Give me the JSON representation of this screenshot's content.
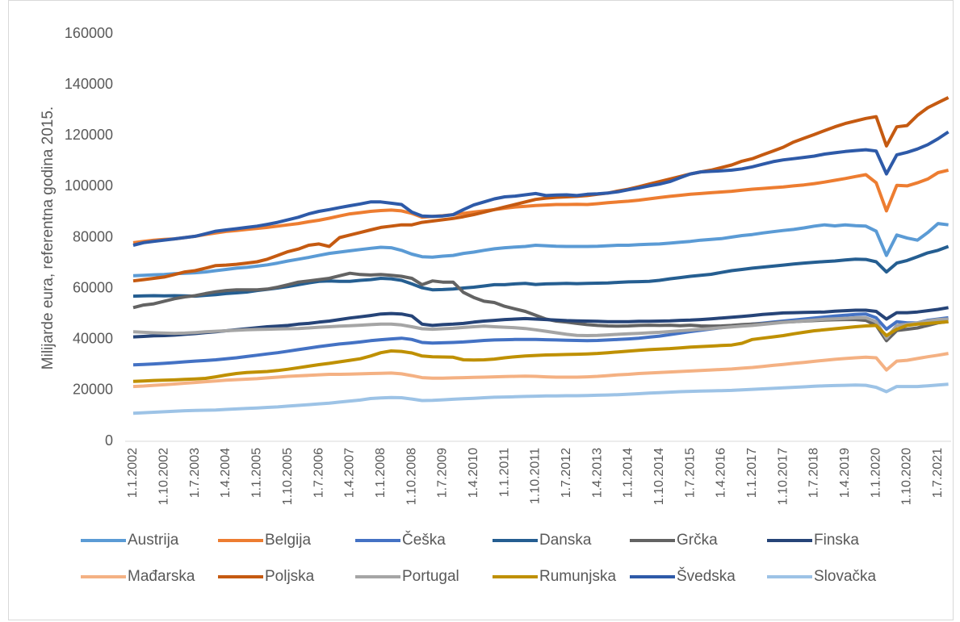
{
  "chart_data": {
    "type": "line",
    "y_label": "Milijarde eura, referentna godina 2015.",
    "ylim": [
      0,
      160000
    ],
    "yticks": [
      0,
      20000,
      40000,
      60000,
      80000,
      100000,
      120000,
      140000,
      160000
    ],
    "grid": false,
    "legend": "bottom",
    "categories": [
      "1.1.2002",
      null,
      null,
      "1.10.2002",
      null,
      null,
      "1.7.2003",
      null,
      null,
      "1.4.2004",
      null,
      null,
      "1.1.2005",
      null,
      null,
      "1.10.2005",
      null,
      null,
      "1.7.2006",
      null,
      null,
      "1.4.2007",
      null,
      null,
      "1.1.2008",
      null,
      null,
      "1.10.2008",
      null,
      null,
      "1.7.2009",
      null,
      null,
      "1.4.2010",
      null,
      null,
      "1.1.2011",
      null,
      null,
      "1.10.2011",
      null,
      null,
      "1.7.2012",
      null,
      null,
      "1.4.2013",
      null,
      null,
      "1.1.2014",
      null,
      null,
      "1.10.2014",
      null,
      null,
      "1.7.2015",
      null,
      null,
      "1.4.2016",
      null,
      null,
      "1.1.2017",
      null,
      null,
      "1.10.2017",
      null,
      null,
      "1.7.2018",
      null,
      null,
      "1.4.2019",
      null,
      null,
      "1.1.2020",
      null,
      null,
      "1.10.2020",
      null,
      null,
      "1.7.2021",
      null
    ],
    "series": [
      {
        "name": "Austrija",
        "color": "#5b9bd5",
        "values": [
          65000,
          65200,
          65400,
          65500,
          65800,
          66000,
          66200,
          66500,
          67000,
          67500,
          68000,
          68300,
          68800,
          69300,
          70000,
          70800,
          71500,
          72200,
          73000,
          73800,
          74300,
          74800,
          75300,
          75800,
          76200,
          76000,
          75000,
          73500,
          72500,
          72300,
          72700,
          73000,
          73800,
          74300,
          75000,
          75600,
          76000,
          76300,
          76500,
          77000,
          76800,
          76600,
          76500,
          76500,
          76500,
          76600,
          76800,
          77000,
          77000,
          77200,
          77400,
          77500,
          77800,
          78200,
          78500,
          79000,
          79300,
          79600,
          80200,
          80800,
          81200,
          81800,
          82300,
          82800,
          83200,
          83800,
          84500,
          85000,
          84600,
          85000,
          84700,
          84500,
          82500,
          73000,
          81000,
          79800,
          79000,
          82000,
          85500,
          85000
        ]
      },
      {
        "name": "Belgija",
        "color": "#ed7d31",
        "values": [
          78000,
          78500,
          79000,
          79300,
          79500,
          80000,
          80500,
          81200,
          81800,
          82400,
          82800,
          83200,
          83600,
          84000,
          84500,
          85000,
          85500,
          86200,
          86800,
          87600,
          88500,
          89300,
          89800,
          90300,
          90600,
          90800,
          90500,
          89500,
          88000,
          88300,
          88600,
          89000,
          89500,
          90000,
          90500,
          91000,
          91500,
          92000,
          92300,
          92600,
          92800,
          93000,
          93000,
          93100,
          93000,
          93300,
          93700,
          94000,
          94300,
          94700,
          95200,
          95700,
          96200,
          96600,
          97000,
          97300,
          97600,
          97900,
          98200,
          98600,
          99000,
          99300,
          99600,
          99900,
          100300,
          100700,
          101200,
          101800,
          102500,
          103200,
          104000,
          104700,
          101500,
          90500,
          100500,
          100300,
          101500,
          103000,
          105500,
          106500
        ]
      },
      {
        "name": "Češka",
        "color": "#4472c4",
        "values": [
          30000,
          30200,
          30400,
          30600,
          30900,
          31200,
          31500,
          31700,
          32000,
          32400,
          32800,
          33300,
          33800,
          34300,
          34800,
          35400,
          36000,
          36600,
          37200,
          37700,
          38200,
          38600,
          39000,
          39500,
          39900,
          40200,
          40500,
          40000,
          38800,
          38600,
          38700,
          38800,
          39000,
          39300,
          39600,
          39800,
          39900,
          40000,
          40000,
          40000,
          39900,
          39800,
          39700,
          39600,
          39500,
          39600,
          39800,
          40000,
          40200,
          40500,
          40900,
          41300,
          41900,
          42500,
          43100,
          43600,
          44100,
          44600,
          45100,
          45600,
          46000,
          46400,
          46800,
          47200,
          47600,
          48000,
          48400,
          48800,
          49200,
          49500,
          49800,
          50000,
          48500,
          44000,
          47000,
          46500,
          46500,
          47500,
          48000,
          48500
        ]
      },
      {
        "name": "Danska",
        "color": "#255e91",
        "values": [
          57000,
          57100,
          57200,
          57100,
          57200,
          57100,
          57000,
          57300,
          57600,
          58000,
          58300,
          58600,
          59200,
          59700,
          60200,
          60800,
          61500,
          62200,
          62800,
          63000,
          62800,
          62800,
          63200,
          63500,
          64000,
          63800,
          63200,
          61800,
          60300,
          59500,
          59600,
          59800,
          60200,
          60500,
          61000,
          61500,
          61500,
          61800,
          62000,
          61600,
          61800,
          61900,
          62000,
          61900,
          62000,
          62100,
          62200,
          62400,
          62600,
          62700,
          62800,
          63200,
          63800,
          64300,
          64800,
          65200,
          65600,
          66300,
          67000,
          67500,
          68000,
          68400,
          68800,
          69200,
          69600,
          70000,
          70300,
          70600,
          70800,
          71200,
          71500,
          71400,
          70500,
          66500,
          70000,
          71000,
          72500,
          74000,
          75000,
          76500
        ]
      },
      {
        "name": "Grčka",
        "color": "#636363",
        "values": [
          52500,
          53500,
          54000,
          55000,
          56000,
          56700,
          57200,
          58000,
          58700,
          59200,
          59500,
          59500,
          59500,
          59800,
          60500,
          61500,
          62500,
          63000,
          63500,
          64000,
          65000,
          66000,
          65500,
          65300,
          65500,
          65200,
          64800,
          64000,
          61500,
          63000,
          62500,
          62500,
          58500,
          56500,
          55000,
          54500,
          53000,
          52000,
          51000,
          49500,
          48000,
          47200,
          46800,
          46300,
          45800,
          45500,
          45300,
          45200,
          45300,
          45500,
          45600,
          45500,
          45600,
          45400,
          45600,
          45300,
          45200,
          45300,
          45500,
          45800,
          46000,
          46200,
          46500,
          46800,
          47000,
          47200,
          47400,
          47600,
          47700,
          47800,
          47800,
          47500,
          45500,
          39500,
          43500,
          44000,
          44500,
          45500,
          46500,
          47000
        ]
      },
      {
        "name": "Finska",
        "color": "#264478",
        "values": [
          41000,
          41200,
          41400,
          41500,
          41700,
          42000,
          42300,
          42700,
          43000,
          43400,
          43800,
          44200,
          44600,
          45000,
          45200,
          45500,
          46000,
          46300,
          46800,
          47200,
          47800,
          48400,
          48900,
          49400,
          50000,
          50200,
          50000,
          49200,
          46000,
          45500,
          45800,
          46000,
          46300,
          46800,
          47200,
          47500,
          47800,
          48000,
          48200,
          48000,
          47800,
          47600,
          47400,
          47300,
          47200,
          47100,
          47000,
          47000,
          47000,
          47100,
          47100,
          47200,
          47300,
          47500,
          47600,
          47800,
          48100,
          48400,
          48700,
          49000,
          49400,
          49800,
          50100,
          50400,
          50500,
          50600,
          50700,
          50800,
          51100,
          51300,
          51500,
          51500,
          51000,
          48000,
          50500,
          50500,
          50800,
          51300,
          51800,
          52500
        ]
      },
      {
        "name": "Mađarska",
        "color": "#f4b183",
        "values": [
          21500,
          21700,
          22000,
          22200,
          22500,
          22800,
          23100,
          23400,
          23700,
          24000,
          24200,
          24400,
          24600,
          24900,
          25200,
          25500,
          25700,
          25900,
          26100,
          26300,
          26300,
          26400,
          26500,
          26600,
          26700,
          26800,
          26500,
          25800,
          25000,
          24800,
          24800,
          24900,
          25000,
          25100,
          25200,
          25300,
          25400,
          25500,
          25600,
          25500,
          25300,
          25200,
          25200,
          25200,
          25300,
          25500,
          25800,
          26100,
          26300,
          26600,
          26800,
          27000,
          27200,
          27400,
          27600,
          27800,
          28000,
          28200,
          28400,
          28700,
          29000,
          29400,
          29800,
          30200,
          30600,
          31000,
          31400,
          31800,
          32200,
          32500,
          32800,
          33000,
          32800,
          28000,
          31500,
          31800,
          32500,
          33200,
          33800,
          34500
        ]
      },
      {
        "name": "Poljska",
        "color": "#c55a11",
        "values": [
          63000,
          63500,
          64000,
          64500,
          65500,
          66500,
          67000,
          68000,
          69000,
          69200,
          69500,
          70000,
          70500,
          71500,
          73000,
          74500,
          75500,
          77000,
          77500,
          76500,
          80000,
          81000,
          82000,
          83000,
          84000,
          84500,
          85000,
          85000,
          86000,
          86500,
          87000,
          87500,
          88200,
          89000,
          90000,
          91000,
          92000,
          93000,
          94000,
          95000,
          95500,
          95800,
          96000,
          96200,
          96500,
          97000,
          97500,
          98300,
          99000,
          100000,
          101000,
          102000,
          103000,
          104000,
          105000,
          105800,
          106500,
          107500,
          108500,
          110000,
          111000,
          112500,
          114000,
          115500,
          117500,
          119000,
          120500,
          122000,
          123500,
          124800,
          125800,
          126800,
          127500,
          116000,
          123500,
          124000,
          128000,
          131000,
          133000,
          135000
        ]
      },
      {
        "name": "Portugal",
        "color": "#a5a5a5",
        "values": [
          43000,
          42800,
          42600,
          42500,
          42400,
          42500,
          42700,
          43000,
          43200,
          43400,
          43600,
          43800,
          43900,
          44000,
          44100,
          44200,
          44300,
          44500,
          44800,
          45000,
          45200,
          45400,
          45600,
          45800,
          46000,
          46000,
          45700,
          45000,
          44200,
          44000,
          44200,
          44400,
          44700,
          45000,
          45200,
          45000,
          44800,
          44600,
          44300,
          43800,
          43200,
          42600,
          42000,
          41600,
          41500,
          41600,
          41800,
          42000,
          42200,
          42400,
          42600,
          42800,
          43100,
          43400,
          43700,
          44000,
          44300,
          44600,
          44900,
          45200,
          45500,
          45900,
          46300,
          46700,
          47000,
          47300,
          47600,
          47900,
          48100,
          48300,
          48500,
          48500,
          47000,
          40500,
          45500,
          46000,
          46500,
          47200,
          47800,
          48000
        ]
      },
      {
        "name": "Rumunjska",
        "color": "#bf9000",
        "values": [
          23500,
          23700,
          23900,
          24000,
          24100,
          24300,
          24500,
          24700,
          25300,
          26000,
          26600,
          27000,
          27200,
          27400,
          27800,
          28300,
          28900,
          29500,
          30100,
          30600,
          31200,
          31800,
          32400,
          33500,
          34800,
          35500,
          35300,
          34700,
          33500,
          33200,
          33100,
          33000,
          32000,
          31900,
          32000,
          32300,
          32800,
          33200,
          33500,
          33700,
          33900,
          34000,
          34100,
          34200,
          34300,
          34500,
          34800,
          35100,
          35400,
          35700,
          36000,
          36200,
          36400,
          36700,
          37000,
          37200,
          37400,
          37600,
          37800,
          38500,
          40000,
          40500,
          41000,
          41500,
          42200,
          42800,
          43400,
          43800,
          44200,
          44600,
          45000,
          45300,
          45500,
          41500,
          44000,
          45500,
          46000,
          46300,
          46600,
          47000
        ]
      },
      {
        "name": "Švedska",
        "color": "#2e5aa8",
        "values": [
          77000,
          78000,
          78500,
          79000,
          79500,
          80000,
          80500,
          81500,
          82500,
          83000,
          83500,
          84000,
          84500,
          85200,
          86000,
          87000,
          88000,
          89300,
          90300,
          91000,
          91800,
          92500,
          93200,
          94000,
          94000,
          93500,
          93000,
          90000,
          88500,
          88300,
          88500,
          89000,
          91000,
          92800,
          94000,
          95200,
          96000,
          96300,
          96800,
          97300,
          96500,
          96700,
          96800,
          96500,
          97000,
          97200,
          97500,
          98000,
          98800,
          99500,
          100300,
          101000,
          102000,
          103500,
          105000,
          105800,
          106000,
          106200,
          106500,
          107000,
          107800,
          108800,
          109800,
          110500,
          111000,
          111500,
          112000,
          112800,
          113300,
          113800,
          114200,
          114500,
          114000,
          105000,
          112500,
          113500,
          114800,
          116500,
          118800,
          121500
        ]
      },
      {
        "name": "Slovačka",
        "color": "#9dc3e6",
        "values": [
          11000,
          11200,
          11400,
          11600,
          11800,
          12000,
          12100,
          12200,
          12300,
          12500,
          12700,
          12900,
          13100,
          13300,
          13500,
          13800,
          14100,
          14400,
          14700,
          15000,
          15400,
          15800,
          16200,
          16800,
          17000,
          17200,
          17100,
          16600,
          16000,
          16100,
          16300,
          16500,
          16700,
          16900,
          17100,
          17300,
          17400,
          17500,
          17600,
          17700,
          17800,
          17800,
          17900,
          17900,
          18000,
          18100,
          18200,
          18300,
          18500,
          18700,
          18900,
          19100,
          19300,
          19500,
          19600,
          19700,
          19800,
          19900,
          20000,
          20200,
          20400,
          20600,
          20800,
          21000,
          21200,
          21400,
          21600,
          21800,
          21900,
          22000,
          22100,
          22000,
          21200,
          19500,
          21500,
          21500,
          21500,
          21800,
          22100,
          22400
        ]
      }
    ]
  }
}
